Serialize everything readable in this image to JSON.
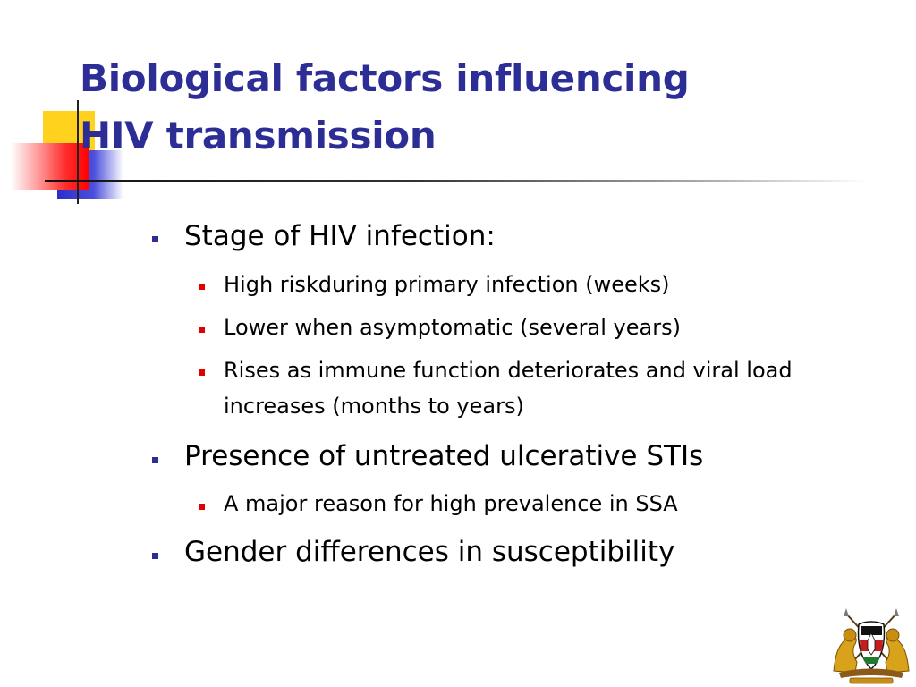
{
  "slide": {
    "title_lines": [
      "Biological factors influencing",
      "HIV transmission"
    ],
    "bullets": [
      {
        "text": "Stage of HIV infection:",
        "sub": [
          "High riskduring primary infection (weeks)",
          "Lower when asymptomatic (several years)",
          "Rises as immune function deteriorates and viral load increases (months to years)"
        ]
      },
      {
        "text": "Presence of untreated ulcerative STIs",
        "sub": [
          "A major reason for high prevalence in SSA"
        ]
      },
      {
        "text": "Gender differences in susceptibility",
        "sub": []
      }
    ]
  },
  "colors": {
    "title": "#2d2d96",
    "level1_marker": "#2d2d96",
    "level2_marker": "#e00000",
    "accent_yellow": "#ffd21e",
    "accent_blue": "#2c2fc8",
    "accent_red": "#ff0000"
  },
  "icons": {
    "emblem": "coat-of-arms-icon"
  }
}
